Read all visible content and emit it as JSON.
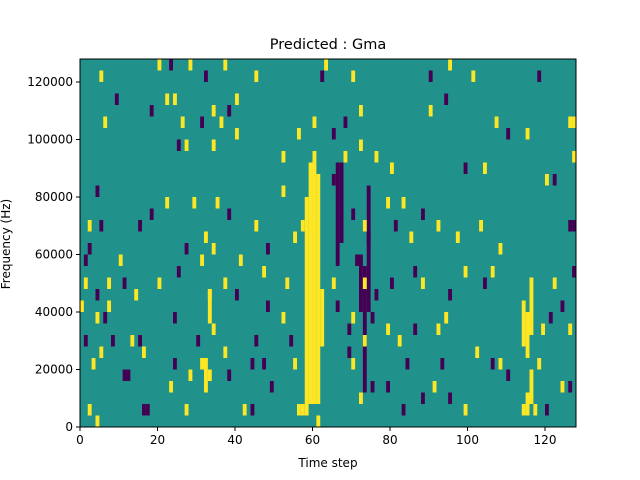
{
  "chart_data": {
    "type": "heatmap",
    "title": "Predicted : Gma",
    "xlabel": "Time step",
    "ylabel": "Frequency (Hz)",
    "xlim": [
      0,
      128
    ],
    "ylim": [
      0,
      128000
    ],
    "xticks": [
      0,
      20,
      40,
      60,
      80,
      100,
      120
    ],
    "yticks": [
      0,
      20000,
      40000,
      60000,
      80000,
      100000,
      120000
    ],
    "grid": false,
    "legend": "none",
    "colors": {
      "background": "#21918c",
      "high": "#fde725",
      "low": "#440154",
      "axes": "#000000"
    },
    "cell_size": {
      "time": 1,
      "frequency": 4000
    },
    "cells": [
      {
        "t": 5,
        "f": 120000,
        "v": 1
      },
      {
        "t": 20,
        "f": 124000,
        "v": 1
      },
      {
        "t": 23,
        "f": 124000,
        "v": -1
      },
      {
        "t": 28,
        "f": 124000,
        "v": 1
      },
      {
        "t": 32,
        "f": 120000,
        "v": -1
      },
      {
        "t": 37,
        "f": 124000,
        "v": 1
      },
      {
        "t": 45,
        "f": 120000,
        "v": 1
      },
      {
        "t": 62,
        "f": 120000,
        "v": -1
      },
      {
        "t": 63,
        "f": 124000,
        "v": 1
      },
      {
        "t": 70,
        "f": 120000,
        "v": 1
      },
      {
        "t": 90,
        "f": 120000,
        "v": -1
      },
      {
        "t": 95,
        "f": 124000,
        "v": 1
      },
      {
        "t": 101,
        "f": 120000,
        "v": 1
      },
      {
        "t": 118,
        "f": 120000,
        "v": -1
      },
      {
        "t": 24,
        "f": 112000,
        "v": 1
      },
      {
        "t": 18,
        "f": 108000,
        "v": -1
      },
      {
        "t": 9,
        "f": 112000,
        "v": -1
      },
      {
        "t": 26,
        "f": 104000,
        "v": 1
      },
      {
        "t": 31,
        "f": 104000,
        "v": -1
      },
      {
        "t": 34,
        "f": 108000,
        "v": 1
      },
      {
        "t": 36,
        "f": 104000,
        "v": 1
      },
      {
        "t": 38,
        "f": 108000,
        "v": -1
      },
      {
        "t": 6,
        "f": 104000,
        "v": 1
      },
      {
        "t": 22,
        "f": 112000,
        "v": 1
      },
      {
        "t": 40,
        "f": 112000,
        "v": 1
      },
      {
        "t": 56,
        "f": 100000,
        "v": 1
      },
      {
        "t": 60,
        "f": 104000,
        "v": 1
      },
      {
        "t": 65,
        "f": 100000,
        "v": -1
      },
      {
        "t": 68,
        "f": 104000,
        "v": -1
      },
      {
        "t": 72,
        "f": 108000,
        "v": 1
      },
      {
        "t": 90,
        "f": 108000,
        "v": 1
      },
      {
        "t": 94,
        "f": 112000,
        "v": -1
      },
      {
        "t": 107,
        "f": 104000,
        "v": 1
      },
      {
        "t": 110,
        "f": 100000,
        "v": -1
      },
      {
        "t": 115,
        "f": 100000,
        "v": 1
      },
      {
        "t": 126,
        "f": 104000,
        "v": 1
      },
      {
        "t": 128,
        "f": 104000,
        "v": 1
      },
      {
        "t": 25,
        "f": 96000,
        "v": -1
      },
      {
        "t": 27,
        "f": 96000,
        "v": 1
      },
      {
        "t": 34,
        "f": 96000,
        "v": 1
      },
      {
        "t": 40,
        "f": 100000,
        "v": 1
      },
      {
        "t": 72,
        "f": 96000,
        "v": 1
      },
      {
        "t": 76,
        "f": 92000,
        "v": 1
      },
      {
        "t": 80,
        "f": 88000,
        "v": 1
      },
      {
        "t": 99,
        "f": 88000,
        "v": -1
      },
      {
        "t": 104,
        "f": 88000,
        "v": 1
      },
      {
        "t": 120,
        "f": 84000,
        "v": 1
      },
      {
        "t": 122,
        "f": 84000,
        "v": -1
      },
      {
        "t": 127,
        "f": 92000,
        "v": 1
      },
      {
        "t": 4,
        "f": 80000,
        "v": -1
      },
      {
        "t": 22,
        "f": 76000,
        "v": 1
      },
      {
        "t": 18,
        "f": 72000,
        "v": -1
      },
      {
        "t": 29,
        "f": 76000,
        "v": 1
      },
      {
        "t": 35,
        "f": 76000,
        "v": 1
      },
      {
        "t": 38,
        "f": 72000,
        "v": -1
      },
      {
        "t": 45,
        "f": 68000,
        "v": 1
      },
      {
        "t": 52,
        "f": 80000,
        "v": 1
      },
      {
        "t": 79,
        "f": 76000,
        "v": 1
      },
      {
        "t": 83,
        "f": 76000,
        "v": 1
      },
      {
        "t": 88,
        "f": 72000,
        "v": -1
      },
      {
        "t": 92,
        "f": 68000,
        "v": 1
      },
      {
        "t": 97,
        "f": 64000,
        "v": 1
      },
      {
        "t": 103,
        "f": 68000,
        "v": 1
      },
      {
        "t": 2,
        "f": 68000,
        "v": 1
      },
      {
        "t": 5,
        "f": 68000,
        "v": -1
      },
      {
        "t": 15,
        "f": 68000,
        "v": -1
      },
      {
        "t": 27,
        "f": 60000,
        "v": -1
      },
      {
        "t": 32,
        "f": 64000,
        "v": 1
      },
      {
        "t": 34,
        "f": 60000,
        "v": 1
      },
      {
        "t": 41,
        "f": 56000,
        "v": 1
      },
      {
        "t": 48,
        "f": 60000,
        "v": -1
      },
      {
        "t": 55,
        "f": 64000,
        "v": 1
      },
      {
        "t": 57,
        "f": 68000,
        "v": 1
      },
      {
        "t": 73,
        "f": 68000,
        "v": 1
      },
      {
        "t": 81,
        "f": 68000,
        "v": -1
      },
      {
        "t": 85,
        "f": 64000,
        "v": 1
      },
      {
        "t": 108,
        "f": 60000,
        "v": 1
      },
      {
        "t": 126,
        "f": 68000,
        "v": -1
      },
      {
        "t": 128,
        "f": 68000,
        "v": -1
      },
      {
        "t": 1,
        "f": 56000,
        "v": -1
      },
      {
        "t": 2,
        "f": 60000,
        "v": -1
      },
      {
        "t": 10,
        "f": 56000,
        "v": 1
      },
      {
        "t": 11,
        "f": 48000,
        "v": -1
      },
      {
        "t": 4,
        "f": 44000,
        "v": -1
      },
      {
        "t": 4,
        "f": 36000,
        "v": 1
      },
      {
        "t": 7,
        "f": 48000,
        "v": 1
      },
      {
        "t": 14,
        "f": 44000,
        "v": 1
      },
      {
        "t": 20,
        "f": 48000,
        "v": 1
      },
      {
        "t": 25,
        "f": 52000,
        "v": -1
      },
      {
        "t": 31,
        "f": 56000,
        "v": 1
      },
      {
        "t": 33,
        "f": 44000,
        "v": 1
      },
      {
        "t": 37,
        "f": 48000,
        "v": 1
      },
      {
        "t": 40,
        "f": 44000,
        "v": -1
      },
      {
        "t": 47,
        "f": 52000,
        "v": 1
      },
      {
        "t": 48,
        "f": 40000,
        "v": -1
      },
      {
        "t": 53,
        "f": 48000,
        "v": 1
      },
      {
        "t": 65,
        "f": 48000,
        "v": 1
      },
      {
        "t": 73,
        "f": 48000,
        "v": 1
      },
      {
        "t": 76,
        "f": 44000,
        "v": -1
      },
      {
        "t": 80,
        "f": 48000,
        "v": -1
      },
      {
        "t": 86,
        "f": 52000,
        "v": -1
      },
      {
        "t": 88,
        "f": 48000,
        "v": 1
      },
      {
        "t": 95,
        "f": 44000,
        "v": -1
      },
      {
        "t": 99,
        "f": 52000,
        "v": 1
      },
      {
        "t": 104,
        "f": 48000,
        "v": -1
      },
      {
        "t": 106,
        "f": 52000,
        "v": 1
      },
      {
        "t": 122,
        "f": 48000,
        "v": 1
      },
      {
        "t": 128,
        "f": 52000,
        "v": -1
      },
      {
        "t": 0,
        "f": 40000,
        "v": 1
      },
      {
        "t": 6,
        "f": 36000,
        "v": -1
      },
      {
        "t": 8,
        "f": 28000,
        "v": -1
      },
      {
        "t": 13,
        "f": 28000,
        "v": 1
      },
      {
        "t": 15,
        "f": 28000,
        "v": -1
      },
      {
        "t": 24,
        "f": 36000,
        "v": -1
      },
      {
        "t": 30,
        "f": 28000,
        "v": -1
      },
      {
        "t": 34,
        "f": 32000,
        "v": 1
      },
      {
        "t": 45,
        "f": 28000,
        "v": -1
      },
      {
        "t": 52,
        "f": 36000,
        "v": 1
      },
      {
        "t": 54,
        "f": 28000,
        "v": -1
      },
      {
        "t": 69,
        "f": 32000,
        "v": -1
      },
      {
        "t": 70,
        "f": 36000,
        "v": 1
      },
      {
        "t": 73,
        "f": 28000,
        "v": 1
      },
      {
        "t": 79,
        "f": 32000,
        "v": 1
      },
      {
        "t": 82,
        "f": 28000,
        "v": 1
      },
      {
        "t": 86,
        "f": 32000,
        "v": -1
      },
      {
        "t": 92,
        "f": 32000,
        "v": 1
      },
      {
        "t": 94,
        "f": 36000,
        "v": 1
      },
      {
        "t": 119,
        "f": 32000,
        "v": 1
      },
      {
        "t": 121,
        "f": 36000,
        "v": -1
      },
      {
        "t": 124,
        "f": 40000,
        "v": -1
      },
      {
        "t": 126,
        "f": 32000,
        "v": 1
      },
      {
        "t": 3,
        "f": 20000,
        "v": 1
      },
      {
        "t": 5,
        "f": 24000,
        "v": 1
      },
      {
        "t": 11,
        "f": 16000,
        "v": -1
      },
      {
        "t": 12,
        "f": 16000,
        "v": -1
      },
      {
        "t": 16,
        "f": 24000,
        "v": 1
      },
      {
        "t": 23,
        "f": 12000,
        "v": 1
      },
      {
        "t": 24,
        "f": 20000,
        "v": -1
      },
      {
        "t": 28,
        "f": 16000,
        "v": 1
      },
      {
        "t": 37,
        "f": 24000,
        "v": 1
      },
      {
        "t": 38,
        "f": 16000,
        "v": -1
      },
      {
        "t": 44,
        "f": 20000,
        "v": -1
      },
      {
        "t": 47,
        "f": 20000,
        "v": -1
      },
      {
        "t": 49,
        "f": 12000,
        "v": -1
      },
      {
        "t": 55,
        "f": 20000,
        "v": 1
      },
      {
        "t": 70,
        "f": 20000,
        "v": 1
      },
      {
        "t": 75,
        "f": 12000,
        "v": -1
      },
      {
        "t": 79,
        "f": 12000,
        "v": -1
      },
      {
        "t": 84,
        "f": 20000,
        "v": -1
      },
      {
        "t": 91,
        "f": 12000,
        "v": 1
      },
      {
        "t": 93,
        "f": 20000,
        "v": -1
      },
      {
        "t": 102,
        "f": 24000,
        "v": 1
      },
      {
        "t": 106,
        "f": 20000,
        "v": -1
      },
      {
        "t": 108,
        "f": 20000,
        "v": 1
      },
      {
        "t": 110,
        "f": 16000,
        "v": -1
      },
      {
        "t": 118,
        "f": 20000,
        "v": 1
      },
      {
        "t": 124,
        "f": 12000,
        "v": 1
      },
      {
        "t": 126,
        "f": 12000,
        "v": -1
      },
      {
        "t": 2,
        "f": 4000,
        "v": 1
      },
      {
        "t": 16,
        "f": 4000,
        "v": -1
      },
      {
        "t": 17,
        "f": 4000,
        "v": -1
      },
      {
        "t": 27,
        "f": 4000,
        "v": 1
      },
      {
        "t": 42,
        "f": 4000,
        "v": 1
      },
      {
        "t": 44,
        "f": 4000,
        "v": -1
      },
      {
        "t": 56,
        "f": 4000,
        "v": 1
      },
      {
        "t": 57,
        "f": 4000,
        "v": 1
      },
      {
        "t": 61,
        "f": 0,
        "v": 1
      },
      {
        "t": 72,
        "f": 8000,
        "v": 1
      },
      {
        "t": 83,
        "f": 4000,
        "v": -1
      },
      {
        "t": 88,
        "f": 8000,
        "v": -1
      },
      {
        "t": 95,
        "f": 8000,
        "v": -1
      },
      {
        "t": 99,
        "f": 4000,
        "v": 1
      },
      {
        "t": 114,
        "f": 4000,
        "v": 1
      },
      {
        "t": 117,
        "f": 4000,
        "v": 1
      },
      {
        "t": 120,
        "f": 4000,
        "v": -1
      },
      {
        "t": 4,
        "f": 0,
        "v": 1
      },
      {
        "t": 65,
        "f": 84000,
        "v": -1
      },
      {
        "t": 70,
        "f": 72000,
        "v": -1
      },
      {
        "t": 71,
        "f": 56000,
        "v": -1
      },
      {
        "t": 66,
        "f": 40000,
        "v": -1
      },
      {
        "t": 69,
        "f": 24000,
        "v": -1
      },
      {
        "t": 74,
        "f": 64000,
        "v": -1
      },
      {
        "t": 75,
        "f": 36000,
        "v": -1
      },
      {
        "t": 52,
        "f": 92000,
        "v": 1
      },
      {
        "t": 68,
        "f": 92000,
        "v": 1
      },
      {
        "t": 33,
        "f": 16000,
        "v": 1
      },
      {
        "t": 31,
        "f": 20000,
        "v": 1
      },
      {
        "t": 1,
        "f": 48000,
        "v": 1
      },
      {
        "t": 1,
        "f": 28000,
        "v": -1
      },
      {
        "t": 7,
        "f": 40000,
        "v": 1
      }
    ],
    "columns": [
      {
        "t": 58,
        "f0": 4000,
        "f1": 80000,
        "v": 1
      },
      {
        "t": 59,
        "f0": 8000,
        "f1": 92000,
        "v": 1
      },
      {
        "t": 60,
        "f0": 8000,
        "f1": 96000,
        "v": 1
      },
      {
        "t": 61,
        "f0": 8000,
        "f1": 88000,
        "v": 1
      },
      {
        "t": 62,
        "f0": 28000,
        "f1": 48000,
        "v": 1
      },
      {
        "t": 66,
        "f0": 56000,
        "f1": 92000,
        "v": -1
      },
      {
        "t": 67,
        "f0": 64000,
        "f1": 92000,
        "v": -1
      },
      {
        "t": 73,
        "f0": 12000,
        "f1": 56000,
        "v": -1
      },
      {
        "t": 74,
        "f0": 40000,
        "f1": 84000,
        "v": -1
      },
      {
        "t": 72,
        "f0": 40000,
        "f1": 60000,
        "v": -1
      },
      {
        "t": 115,
        "f0": 24000,
        "f1": 40000,
        "v": 1
      },
      {
        "t": 116,
        "f0": 32000,
        "f1": 52000,
        "v": 1
      },
      {
        "t": 116,
        "f0": 8000,
        "f1": 20000,
        "v": 1
      },
      {
        "t": 115,
        "f0": 4000,
        "f1": 12000,
        "v": 1
      },
      {
        "t": 114,
        "f0": 28000,
        "f1": 44000,
        "v": 1
      },
      {
        "t": 32,
        "f0": 12000,
        "f1": 24000,
        "v": 1
      },
      {
        "t": 33,
        "f0": 36000,
        "f1": 48000,
        "v": 1
      }
    ]
  }
}
